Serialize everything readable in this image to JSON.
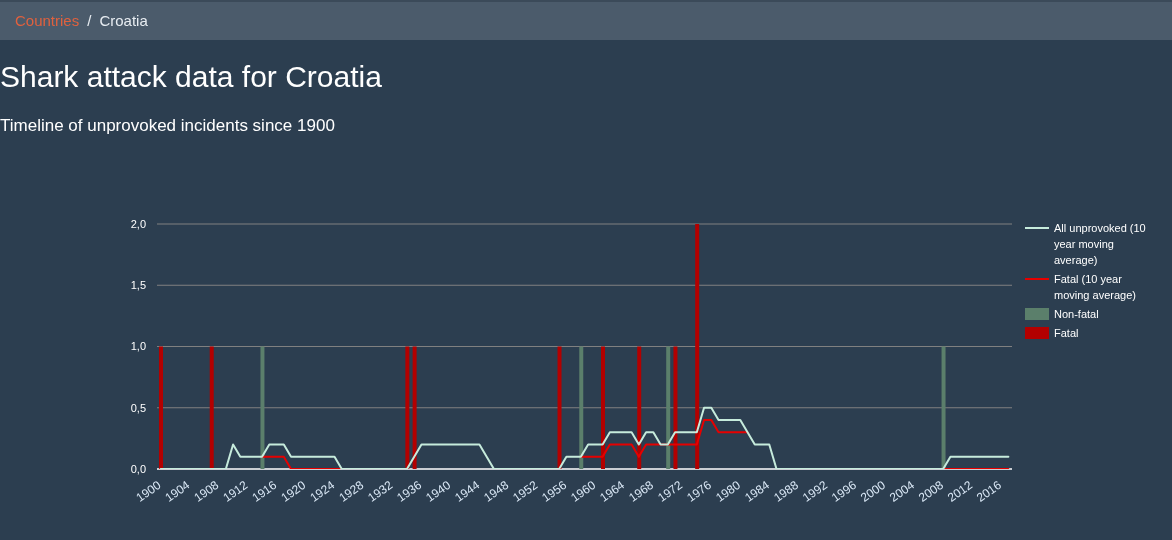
{
  "chart_data": {
    "type": "bar",
    "title": "Shark attack data for Croatia",
    "subtitle": "Timeline of unprovoked incidents since 1900",
    "annotations": [
      "Countries",
      "/",
      "Croatia"
    ],
    "categories": [
      "1900",
      null,
      null,
      null,
      "1904",
      null,
      null,
      null,
      "1908",
      null,
      null,
      null,
      "1912",
      null,
      null,
      null,
      "1916",
      null,
      null,
      null,
      "1920",
      null,
      null,
      null,
      "1924",
      null,
      null,
      null,
      "1928",
      null,
      null,
      null,
      "1932",
      null,
      null,
      null,
      "1936",
      null,
      null,
      null,
      "1940",
      null,
      null,
      null,
      "1944",
      null,
      null,
      null,
      "1948",
      null,
      null,
      null,
      "1952",
      null,
      null,
      null,
      "1956",
      null,
      null,
      null,
      "1960",
      null,
      null,
      null,
      "1964",
      null,
      null,
      null,
      "1968",
      null,
      null,
      null,
      "1972",
      null,
      null,
      null,
      "1976",
      null,
      null,
      null,
      "1980",
      null,
      null,
      null,
      "1984",
      null,
      null,
      null,
      "1988",
      null,
      null,
      null,
      "1992",
      null,
      null,
      null,
      "1996",
      null,
      null,
      null,
      "2000",
      null,
      null,
      null,
      "2004",
      null,
      null,
      null,
      "2008",
      null,
      null,
      null,
      "2012",
      null,
      null,
      null,
      "2016",
      null
    ],
    "stacked": true,
    "ylim": [
      0,
      2
    ],
    "yticks": [
      {
        "value": 0,
        "label": "0,0"
      },
      {
        "value": 0.5,
        "label": "0,5"
      },
      {
        "value": 1,
        "label": "1,0"
      },
      {
        "value": 1.5,
        "label": "1,5"
      },
      {
        "value": 2,
        "label": "2,0"
      }
    ],
    "grid": "y",
    "legend": "right",
    "marker": "none",
    "series": [
      {
        "name": "All unprovoked (10 year moving average)",
        "type": "line",
        "color": "#c6ebdc",
        "values": [
          0,
          0,
          0,
          0,
          0,
          0,
          0,
          0,
          0,
          0,
          0.2,
          0.1,
          0.1,
          0.1,
          0.1,
          0.2,
          0.2,
          0.2,
          0.1,
          0.1,
          0.1,
          0.1,
          0.1,
          0.1,
          0.1,
          0,
          0,
          0,
          0,
          0,
          0,
          0,
          0,
          0,
          0,
          0.1,
          0.2,
          0.2,
          0.2,
          0.2,
          0.2,
          0.2,
          0.2,
          0.2,
          0.2,
          0.1,
          0,
          0,
          0,
          0,
          0,
          0,
          0,
          0,
          0,
          0,
          0.1,
          0.1,
          0.1,
          0.2,
          0.2,
          0.2,
          0.3,
          0.3,
          0.3,
          0.3,
          0.2,
          0.3,
          0.3,
          0.2,
          0.2,
          0.3,
          0.3,
          0.3,
          0.3,
          0.5,
          0.5,
          0.4,
          0.4,
          0.4,
          0.4,
          0.3,
          0.2,
          0.2,
          0.2,
          0,
          0,
          0,
          0,
          0,
          0,
          0,
          0,
          0,
          0,
          0,
          0,
          0,
          0,
          0,
          0,
          0,
          0,
          0,
          0,
          0,
          0,
          0,
          0,
          0.1,
          0.1,
          0.1,
          0.1,
          0.1,
          0.1,
          0.1,
          0.1,
          0.1
        ]
      },
      {
        "name": "Fatal (10 year moving average)",
        "type": "line",
        "color": "#e60000",
        "values": [
          null,
          null,
          null,
          null,
          null,
          null,
          null,
          null,
          null,
          null,
          null,
          null,
          null,
          null,
          0.1,
          0.1,
          0.1,
          0.1,
          0,
          0,
          0,
          0,
          0,
          0,
          0,
          0,
          null,
          null,
          null,
          null,
          null,
          null,
          null,
          null,
          null,
          null,
          null,
          null,
          null,
          null,
          null,
          null,
          null,
          null,
          null,
          null,
          null,
          null,
          null,
          null,
          null,
          null,
          null,
          null,
          null,
          null,
          null,
          null,
          0.1,
          0.1,
          0.1,
          0.1,
          0.2,
          0.2,
          0.2,
          0.2,
          0.1,
          0.2,
          0.2,
          0.2,
          0.2,
          0.2,
          0.2,
          0.2,
          0.2,
          0.4,
          0.4,
          0.3,
          0.3,
          0.3,
          0.3,
          0.3,
          null,
          null,
          null,
          null,
          null,
          null,
          null,
          null,
          null,
          null,
          null,
          null,
          null,
          null,
          null,
          null,
          null,
          null,
          null,
          null,
          null,
          null,
          null,
          null,
          null,
          null,
          0,
          0,
          0,
          0,
          0,
          0,
          0,
          0,
          0,
          0
        ]
      },
      {
        "name": "Non-fatal",
        "type": "bar",
        "color": "#5b7f6b",
        "values": [
          0,
          0,
          0,
          0,
          0,
          0,
          0,
          0,
          0,
          0,
          0,
          0,
          0,
          0,
          1,
          0,
          0,
          0,
          0,
          0,
          0,
          0,
          0,
          0,
          0,
          0,
          0,
          0,
          0,
          0,
          0,
          0,
          0,
          0,
          0,
          0,
          0,
          0,
          0,
          0,
          0,
          0,
          0,
          0,
          0,
          0,
          0,
          0,
          0,
          0,
          0,
          0,
          0,
          0,
          0,
          0,
          0,
          0,
          1,
          0,
          0,
          0,
          0,
          0,
          0,
          0,
          0,
          0,
          0,
          0,
          1,
          0,
          0,
          0,
          0,
          0,
          0,
          0,
          0,
          0,
          0,
          0,
          0,
          0,
          0,
          0,
          0,
          0,
          0,
          0,
          0,
          0,
          0,
          0,
          0,
          0,
          0,
          0,
          0,
          0,
          0,
          0,
          0,
          0,
          0,
          0,
          0,
          0,
          1,
          0,
          0,
          0,
          0,
          0,
          0,
          0,
          0,
          0
        ]
      },
      {
        "name": "Fatal",
        "type": "bar",
        "color": "#b30000",
        "values": [
          1,
          0,
          0,
          0,
          0,
          0,
          0,
          1,
          0,
          0,
          0,
          0,
          0,
          0,
          0,
          0,
          0,
          0,
          0,
          0,
          0,
          0,
          0,
          0,
          0,
          0,
          0,
          0,
          0,
          0,
          0,
          0,
          0,
          0,
          1,
          1,
          0,
          0,
          0,
          0,
          0,
          0,
          0,
          0,
          0,
          0,
          0,
          0,
          0,
          0,
          0,
          0,
          0,
          0,
          0,
          1,
          0,
          0,
          0,
          0,
          0,
          1,
          0,
          0,
          0,
          0,
          1,
          0,
          0,
          0,
          0,
          1,
          0,
          0,
          2,
          0,
          0,
          0,
          0,
          0,
          0,
          0,
          0,
          0,
          0,
          0,
          0,
          0,
          0,
          0,
          0,
          0,
          0,
          0,
          0,
          0,
          0,
          0,
          0,
          0,
          0,
          0,
          0,
          0,
          0,
          0,
          0,
          0,
          0,
          0,
          0,
          0,
          0,
          0,
          0,
          0,
          0,
          0
        ]
      }
    ]
  }
}
